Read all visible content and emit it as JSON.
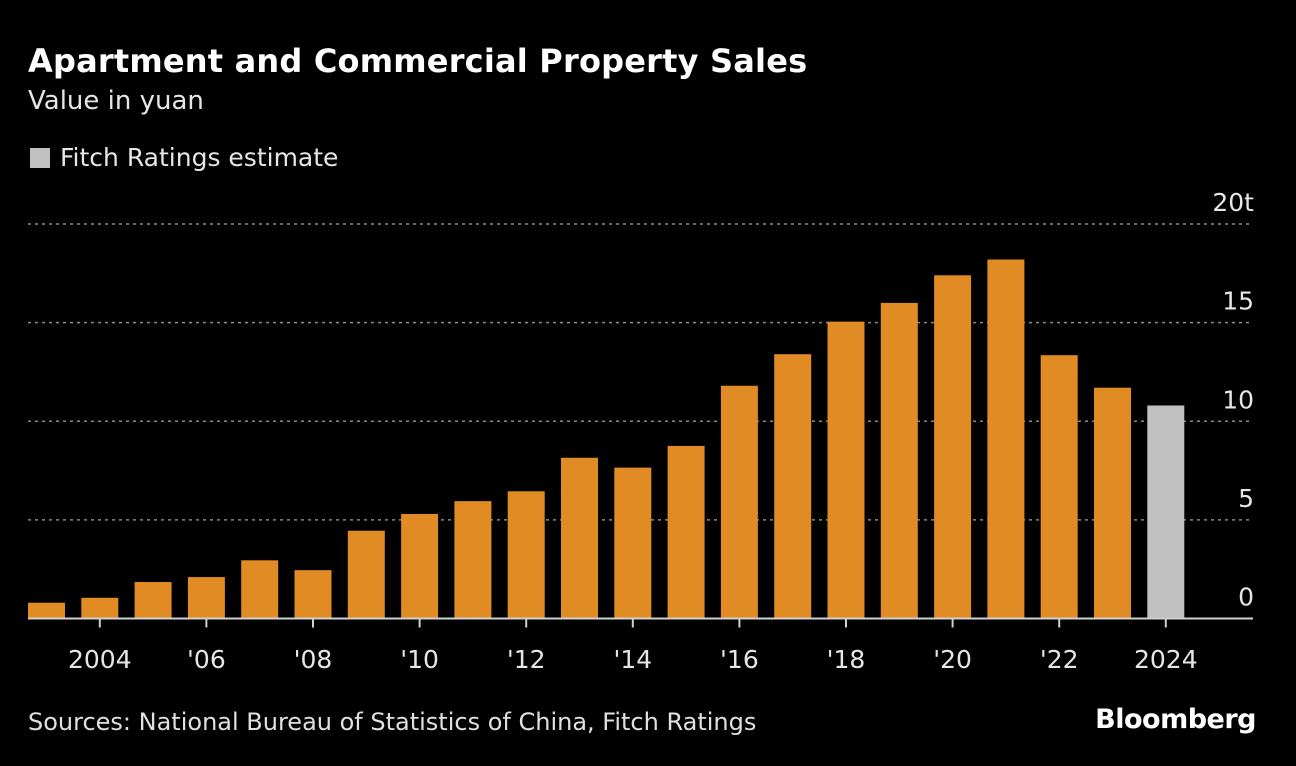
{
  "chart_data": {
    "type": "bar",
    "title": "Apartment and Commercial Property Sales",
    "subtitle": "Value in yuan",
    "legend": [
      {
        "name": "Fitch Ratings estimate",
        "color": "#c0c0c0"
      }
    ],
    "categories": [
      2003,
      2004,
      2005,
      2006,
      2007,
      2008,
      2009,
      2010,
      2011,
      2012,
      2013,
      2014,
      2015,
      2016,
      2017,
      2018,
      2019,
      2020,
      2021,
      2022,
      2023,
      2024
    ],
    "values": [
      0.8,
      1.05,
      1.85,
      2.1,
      2.95,
      2.45,
      4.45,
      5.3,
      5.95,
      6.45,
      8.15,
      7.65,
      8.75,
      11.8,
      13.4,
      15.05,
      16.0,
      17.4,
      18.2,
      13.35,
      11.7,
      10.8
    ],
    "estimate": [
      false,
      false,
      false,
      false,
      false,
      false,
      false,
      false,
      false,
      false,
      false,
      false,
      false,
      false,
      false,
      false,
      false,
      false,
      false,
      false,
      false,
      true
    ],
    "bar_color": "#e08b24",
    "estimate_color": "#c0c0c0",
    "x_tick_labels": [
      {
        "year": 2004,
        "label": "2004"
      },
      {
        "year": 2006,
        "label": "'06"
      },
      {
        "year": 2008,
        "label": "'08"
      },
      {
        "year": 2010,
        "label": "'10"
      },
      {
        "year": 2012,
        "label": "'12"
      },
      {
        "year": 2014,
        "label": "'14"
      },
      {
        "year": 2016,
        "label": "'16"
      },
      {
        "year": 2018,
        "label": "'18"
      },
      {
        "year": 2020,
        "label": "'20"
      },
      {
        "year": 2022,
        "label": "'22"
      },
      {
        "year": 2024,
        "label": "2024"
      }
    ],
    "y_ticks": [
      {
        "value": 0,
        "label": "0"
      },
      {
        "value": 5,
        "label": "5"
      },
      {
        "value": 10,
        "label": "10"
      },
      {
        "value": 15,
        "label": "15"
      },
      {
        "value": 20,
        "label": "20t"
      }
    ],
    "ylim": [
      0,
      20
    ],
    "y_axis_position": "right",
    "grid": true,
    "legend_position": "top-left"
  },
  "footer": {
    "source": "Sources: National Bureau of Statistics of China, Fitch Ratings",
    "brand": "Bloomberg"
  }
}
